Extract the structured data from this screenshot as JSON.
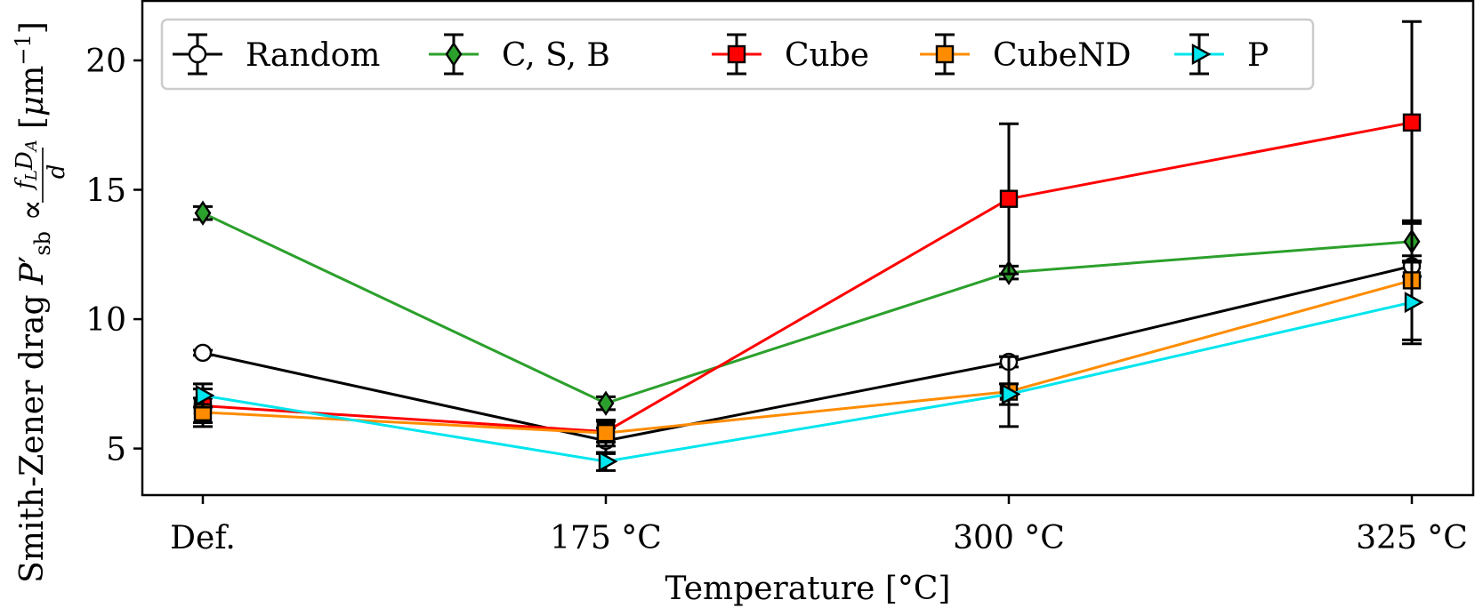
{
  "chart_data": {
    "type": "line",
    "categories": [
      "Def.",
      "175 °C",
      "300 °C",
      "325 °C"
    ],
    "xlabel": "Temperature [°C]",
    "ylabel": {
      "prefix": "Smith-Zener drag ",
      "p_symbol": "P",
      "prime": "′",
      "subscript": "sb",
      "propto": " ∝ ",
      "numerator_f": "f",
      "numerator_f_sub": "L",
      "numerator_D": "D",
      "numerator_D_sub": "A",
      "denominator": "d",
      "unit_open": " [",
      "unit_mu": "μ",
      "unit_m": "m",
      "unit_exp": "−1",
      "unit_close": "]"
    },
    "ylim": [
      3.2,
      22.3
    ],
    "yticks": [
      5,
      10,
      15,
      20
    ],
    "grid": false,
    "legend_position": "top",
    "series": [
      {
        "name": "Random",
        "color": "#000000",
        "marker": "circle",
        "marker_fill": "#ffffff",
        "values": [
          8.7,
          5.3,
          8.35,
          12.05
        ],
        "errors": [
          0.1,
          0.5,
          0.2,
          0.4
        ]
      },
      {
        "name": "C, S, B",
        "color": "#2ca02c",
        "marker": "diamond",
        "marker_fill": "#2ca02c",
        "values": [
          14.1,
          6.75,
          11.8,
          13.0
        ],
        "errors": [
          0.25,
          0.25,
          0.25,
          0.8
        ]
      },
      {
        "name": "Cube",
        "color": "#ff0000",
        "marker": "square",
        "marker_fill": "#ff0000",
        "values": [
          6.65,
          5.65,
          14.65,
          17.6
        ],
        "errors": [
          0.65,
          0.4,
          2.9,
          3.9
        ]
      },
      {
        "name": "CubeND",
        "color": "#ff8c00",
        "marker": "square",
        "marker_fill": "#ff8c00",
        "values": [
          6.4,
          5.6,
          7.2,
          11.5
        ],
        "errors": [
          0.55,
          0.5,
          1.35,
          2.3
        ]
      },
      {
        "name": "P",
        "color": "#00e5ee",
        "marker": "triangle-right",
        "marker_fill": "#00e5ee",
        "values": [
          7.05,
          4.5,
          7.1,
          10.65
        ],
        "errors": [
          0.45,
          0.35,
          0.4,
          1.6
        ]
      }
    ]
  }
}
